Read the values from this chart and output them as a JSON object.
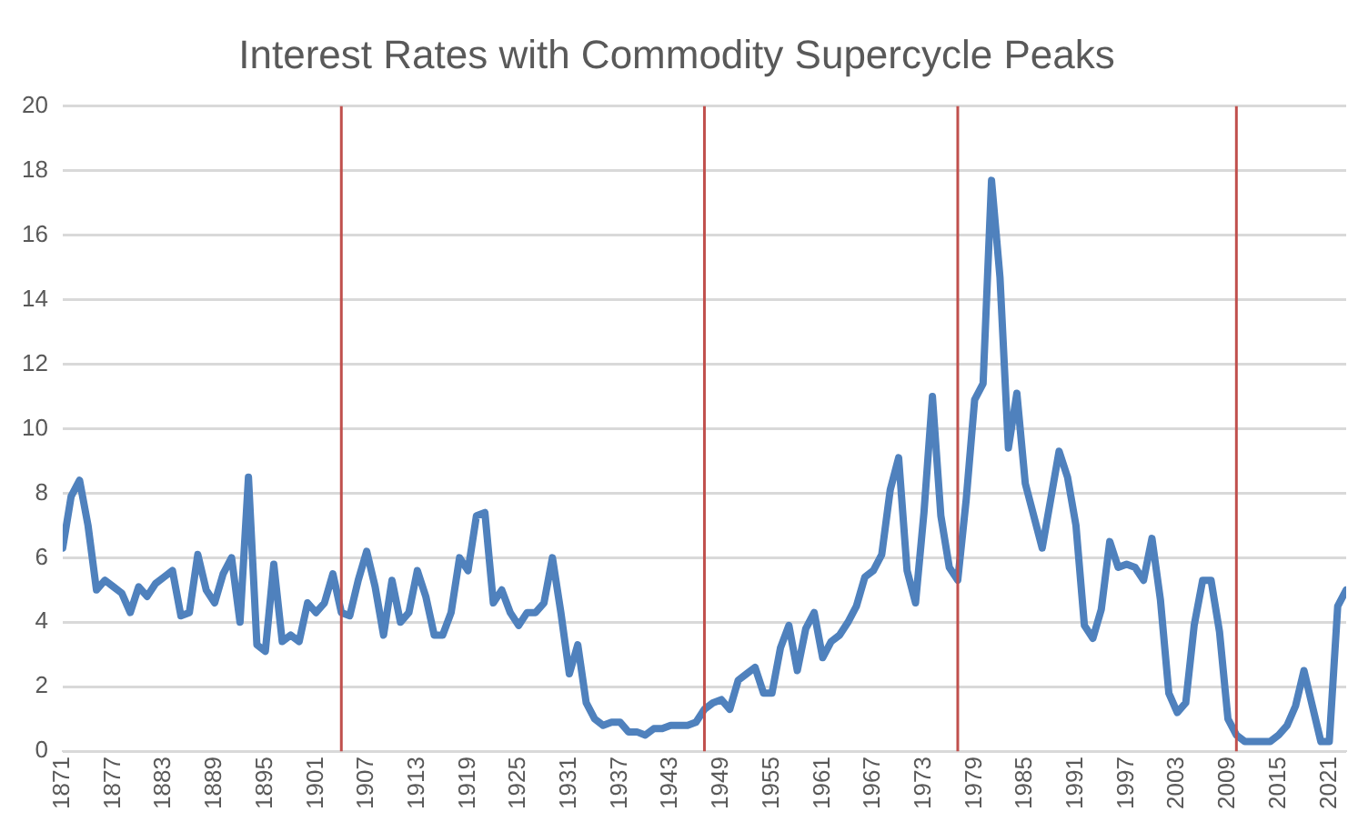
{
  "chart_data": {
    "type": "line",
    "title": "Interest Rates with Commodity Supercycle Peaks",
    "x": [
      1871,
      1872,
      1873,
      1874,
      1875,
      1876,
      1877,
      1878,
      1879,
      1880,
      1881,
      1882,
      1883,
      1884,
      1885,
      1886,
      1887,
      1888,
      1889,
      1890,
      1891,
      1892,
      1893,
      1894,
      1895,
      1896,
      1897,
      1898,
      1899,
      1900,
      1901,
      1902,
      1903,
      1904,
      1905,
      1906,
      1907,
      1908,
      1909,
      1910,
      1911,
      1912,
      1913,
      1914,
      1915,
      1916,
      1917,
      1918,
      1919,
      1920,
      1921,
      1922,
      1923,
      1924,
      1925,
      1926,
      1927,
      1928,
      1929,
      1930,
      1931,
      1932,
      1933,
      1934,
      1935,
      1936,
      1937,
      1938,
      1939,
      1940,
      1941,
      1942,
      1943,
      1944,
      1945,
      1946,
      1947,
      1948,
      1949,
      1950,
      1951,
      1952,
      1953,
      1954,
      1955,
      1956,
      1957,
      1958,
      1959,
      1960,
      1961,
      1962,
      1963,
      1964,
      1965,
      1966,
      1967,
      1968,
      1969,
      1970,
      1971,
      1972,
      1973,
      1974,
      1975,
      1976,
      1977,
      1978,
      1979,
      1980,
      1981,
      1982,
      1983,
      1984,
      1985,
      1986,
      1987,
      1988,
      1989,
      1990,
      1991,
      1992,
      1993,
      1994,
      1995,
      1996,
      1997,
      1998,
      1999,
      2000,
      2001,
      2002,
      2003,
      2004,
      2005,
      2006,
      2007,
      2008,
      2009,
      2010,
      2011,
      2012,
      2013,
      2014,
      2015,
      2016,
      2017,
      2018,
      2019,
      2020,
      2021,
      2022,
      2023
    ],
    "series": [
      {
        "color": "#4f81bd",
        "values": [
          6.3,
          7.9,
          8.4,
          7.0,
          5.0,
          5.3,
          5.1,
          4.9,
          4.3,
          5.1,
          4.8,
          5.2,
          5.4,
          5.6,
          4.2,
          4.3,
          6.1,
          5.0,
          4.6,
          5.5,
          6.0,
          4.0,
          8.5,
          3.3,
          3.1,
          5.8,
          3.4,
          3.6,
          3.4,
          4.6,
          4.3,
          4.6,
          5.5,
          4.3,
          4.2,
          5.3,
          6.2,
          5.1,
          3.6,
          5.3,
          4.0,
          4.3,
          5.6,
          4.8,
          3.6,
          3.6,
          4.3,
          6.0,
          5.6,
          7.3,
          7.4,
          4.6,
          5.0,
          4.3,
          3.9,
          4.3,
          4.3,
          4.6,
          6.0,
          4.3,
          2.4,
          3.3,
          1.5,
          1.0,
          0.8,
          0.9,
          0.9,
          0.6,
          0.6,
          0.5,
          0.7,
          0.7,
          0.8,
          0.8,
          0.8,
          0.9,
          1.3,
          1.5,
          1.6,
          1.3,
          2.2,
          2.4,
          2.6,
          1.8,
          1.8,
          3.2,
          3.9,
          2.5,
          3.8,
          4.3,
          2.9,
          3.4,
          3.6,
          4.0,
          4.5,
          5.4,
          5.6,
          6.1,
          8.1,
          9.1,
          5.6,
          4.6,
          7.4,
          11.0,
          7.3,
          5.7,
          5.3,
          7.8,
          10.9,
          11.4,
          17.7,
          14.7,
          9.4,
          11.1,
          8.3,
          7.3,
          6.3,
          7.8,
          9.3,
          8.5,
          7.0,
          3.9,
          3.5,
          4.4,
          6.5,
          5.7,
          5.8,
          5.7,
          5.3,
          6.6,
          4.7,
          1.8,
          1.2,
          1.5,
          3.9,
          5.3,
          5.3,
          3.7,
          1.0,
          0.5,
          0.3,
          0.3,
          0.3,
          0.3,
          0.5,
          0.8,
          1.4,
          2.5,
          1.4,
          0.3,
          0.3,
          4.5,
          5.0
        ]
      }
    ],
    "xlim": [
      1871,
      2023
    ],
    "xticks": [
      1871,
      1877,
      1883,
      1889,
      1895,
      1901,
      1907,
      1913,
      1919,
      1925,
      1931,
      1937,
      1943,
      1949,
      1955,
      1961,
      1967,
      1973,
      1979,
      1985,
      1991,
      1997,
      2003,
      2009,
      2015,
      2021
    ],
    "ylim": [
      0,
      20
    ],
    "yticks": [
      0,
      2,
      4,
      6,
      8,
      10,
      12,
      14,
      16,
      18,
      20
    ],
    "grid": "y",
    "legend": false,
    "marker": "none",
    "line_style": "solid",
    "ref_lines": [
      {
        "axis": "x",
        "value": 1904,
        "color": "#c0504d"
      },
      {
        "axis": "x",
        "value": 1947,
        "color": "#c0504d"
      },
      {
        "axis": "x",
        "value": 1977,
        "color": "#c0504d"
      },
      {
        "axis": "x",
        "value": 2010,
        "color": "#c0504d"
      }
    ]
  }
}
